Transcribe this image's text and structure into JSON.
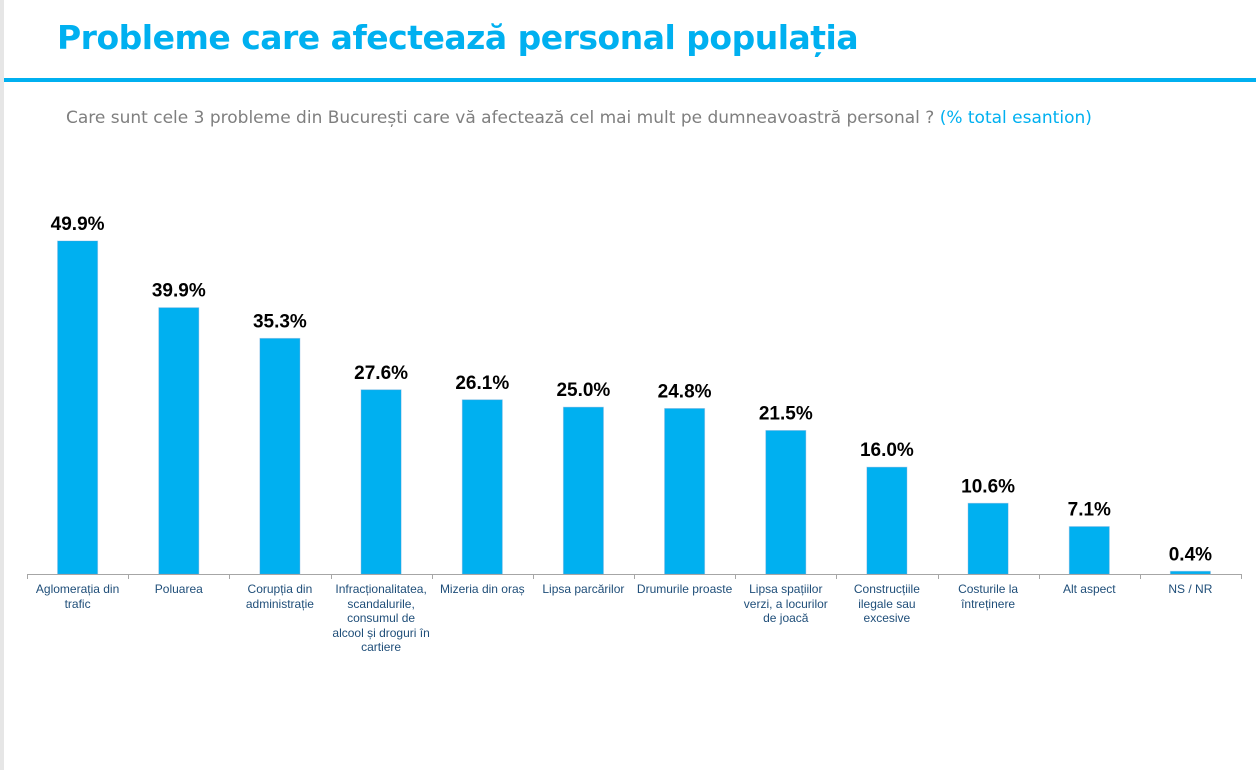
{
  "header": {
    "title": "Probleme care afectează personal populația",
    "subtitle_main": "Care sunt cele 3 probleme din București care vă afectează cel mai mult pe dumneavoastră personal ?",
    "subtitle_accent": "(% total esantion)"
  },
  "colors": {
    "accent": "#00b0f0",
    "bar": "#00b0f0",
    "category_text": "#1f4e79",
    "subtitle_text": "#7f7f7f",
    "axis": "#a6a6a6"
  },
  "chart_data": {
    "type": "bar",
    "title": "Probleme care afectează personal populația",
    "subtitle": "Care sunt cele 3 probleme din București care vă afectează cel mai mult pe dumneavoastră personal ? (% total esantion)",
    "xlabel": "",
    "ylabel": "",
    "ylim": [
      0,
      50
    ],
    "grid": false,
    "legend": "none",
    "unit": "%",
    "categories": [
      "Aglomerația din trafic",
      "Poluarea",
      "Corupția din administrație",
      "Infracționalitatea, scandalurile, consumul de alcool și droguri în cartiere",
      "Mizeria din oraș",
      "Lipsa parcărilor",
      "Drumurile proaste",
      "Lipsa spațiilor verzi, a locurilor de joacă",
      "Construcțiile ilegale sau excesive",
      "Costurile la întreținere",
      "Alt aspect",
      "NS / NR"
    ],
    "category_lines": [
      [
        "Aglomerația din",
        "trafic"
      ],
      [
        "Poluarea"
      ],
      [
        "Corupția din",
        "administrație"
      ],
      [
        "Infracționalitatea,",
        "scandalurile,",
        "consumul de",
        "alcool și droguri în",
        "cartiere"
      ],
      [
        "Mizeria din oraș"
      ],
      [
        "Lipsa parcărilor"
      ],
      [
        "Drumurile proaste"
      ],
      [
        "Lipsa spațiilor",
        "verzi, a locurilor",
        "de joacă"
      ],
      [
        "Construcțiile",
        "ilegale sau",
        "excesive"
      ],
      [
        "Costurile la",
        "întreținere"
      ],
      [
        "Alt aspect"
      ],
      [
        "NS / NR"
      ]
    ],
    "values": [
      49.9,
      39.9,
      35.3,
      27.6,
      26.1,
      25.0,
      24.8,
      21.5,
      16.0,
      10.6,
      7.1,
      0.4
    ],
    "data_labels": [
      "49.9%",
      "39.9%",
      "35.3%",
      "27.6%",
      "26.1%",
      "25.0%",
      "24.8%",
      "21.5%",
      "16.0%",
      "10.6%",
      "7.1%",
      "0.4%"
    ]
  }
}
